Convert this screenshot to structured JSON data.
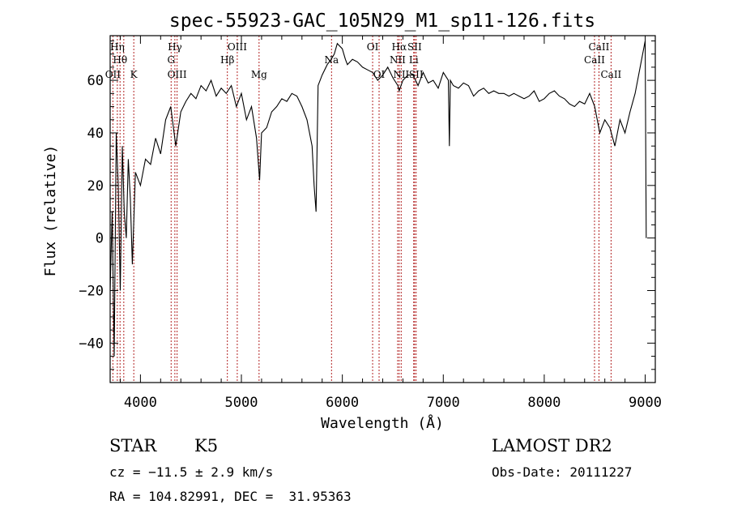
{
  "chart_data": {
    "type": "line",
    "title": "spec-55923-GAC_105N29_M1_sp11-126.fits",
    "xlabel": "Wavelength (Å)",
    "ylabel": "Flux (relative)",
    "xlim": [
      3700,
      9100
    ],
    "ylim": [
      -55,
      77
    ],
    "x_ticks": [
      4000,
      5000,
      6000,
      7000,
      8000,
      9000
    ],
    "y_ticks": [
      -40,
      -20,
      0,
      20,
      40,
      60
    ],
    "grid": false,
    "series": [
      {
        "x": [
          3700,
          3720,
          3740,
          3760,
          3780,
          3800,
          3820,
          3840,
          3860,
          3880,
          3900,
          3920,
          3950,
          4000,
          4050,
          4100,
          4150,
          4200,
          4250,
          4300,
          4350,
          4400,
          4450,
          4500,
          4550,
          4600,
          4650,
          4700,
          4750,
          4800,
          4850,
          4900,
          4950,
          5000,
          5050,
          5100,
          5150,
          5180,
          5200,
          5250,
          5300,
          5350,
          5400,
          5450,
          5500,
          5550,
          5600,
          5650,
          5700,
          5720,
          5740,
          5760,
          5800,
          5850,
          5890,
          5920,
          5950,
          6000,
          6030,
          6050,
          6100,
          6150,
          6200,
          6250,
          6300,
          6350,
          6400,
          6450,
          6500,
          6550,
          6563,
          6600,
          6650,
          6700,
          6750,
          6800,
          6850,
          6900,
          6950,
          7000,
          7050,
          7060,
          7070,
          7100,
          7150,
          7200,
          7250,
          7300,
          7350,
          7400,
          7450,
          7500,
          7550,
          7600,
          7650,
          7700,
          7750,
          7800,
          7850,
          7900,
          7950,
          8000,
          8050,
          8100,
          8150,
          8200,
          8250,
          8300,
          8350,
          8400,
          8450,
          8500,
          8550,
          8600,
          8650,
          8700,
          8750,
          8800,
          8850,
          8900,
          8950,
          9000,
          9010
        ],
        "values": [
          -20,
          10,
          -45,
          40,
          20,
          -20,
          35,
          10,
          0,
          30,
          15,
          -10,
          25,
          20,
          30,
          28,
          38,
          32,
          45,
          50,
          35,
          48,
          52,
          55,
          53,
          58,
          56,
          60,
          54,
          57,
          55,
          58,
          50,
          55,
          45,
          50,
          38,
          22,
          40,
          42,
          48,
          50,
          53,
          52,
          55,
          54,
          50,
          45,
          35,
          20,
          10,
          58,
          62,
          66,
          68,
          70,
          74,
          72,
          68,
          66,
          68,
          67,
          65,
          64,
          63,
          60,
          62,
          65,
          61,
          58,
          56,
          60,
          62,
          62,
          58,
          63,
          59,
          60,
          57,
          63,
          60,
          35,
          60,
          58,
          57,
          59,
          58,
          54,
          56,
          57,
          55,
          56,
          55,
          55,
          54,
          55,
          54,
          53,
          54,
          56,
          52,
          53,
          55,
          56,
          54,
          53,
          51,
          50,
          52,
          51,
          55,
          50,
          40,
          45,
          42,
          35,
          45,
          40,
          48,
          55,
          65,
          75,
          0
        ]
      }
    ],
    "line_markers": [
      {
        "x": 3727,
        "label": "OII",
        "row": 3
      },
      {
        "x": 3771,
        "label": "Hη",
        "row": 1
      },
      {
        "x": 3798,
        "label": "Hθ",
        "row": 2
      },
      {
        "x": 3835,
        "label": "",
        "row": 1
      },
      {
        "x": 3934,
        "label": "K",
        "row": 3
      },
      {
        "x": 4304,
        "label": "G",
        "row": 2
      },
      {
        "x": 4341,
        "label": "Hγ",
        "row": 1
      },
      {
        "x": 4363,
        "label": "OIII",
        "row": 3
      },
      {
        "x": 4861,
        "label": "Hβ",
        "row": 2
      },
      {
        "x": 4959,
        "label": "OIII",
        "row": 1
      },
      {
        "x": 5175,
        "label": "Mg",
        "row": 3
      },
      {
        "x": 5893,
        "label": "Na",
        "row": 2
      },
      {
        "x": 6300,
        "label": "OI",
        "row": 1
      },
      {
        "x": 6364,
        "label": "OI",
        "row": 3
      },
      {
        "x": 6548,
        "label": "NII",
        "row": 2
      },
      {
        "x": 6563,
        "label": "Hα",
        "row": 1
      },
      {
        "x": 6583,
        "label": "NII",
        "row": 3
      },
      {
        "x": 6707,
        "label": "Li",
        "row": 2
      },
      {
        "x": 6716,
        "label": "SII",
        "row": 1
      },
      {
        "x": 6731,
        "label": "SII",
        "row": 3
      },
      {
        "x": 8498,
        "label": "CaII",
        "row": 2
      },
      {
        "x": 8542,
        "label": "CaII",
        "row": 1
      },
      {
        "x": 8662,
        "label": "CaII",
        "row": 3
      }
    ]
  },
  "info": {
    "class": "STAR",
    "subclass": "K5",
    "cz": "cz = −11.5 ± 2.9 km/s",
    "radec": "RA = 104.82991, DEC =  31.95363",
    "survey": "LAMOST DR2",
    "obsdate": "Obs-Date: 20111227"
  }
}
